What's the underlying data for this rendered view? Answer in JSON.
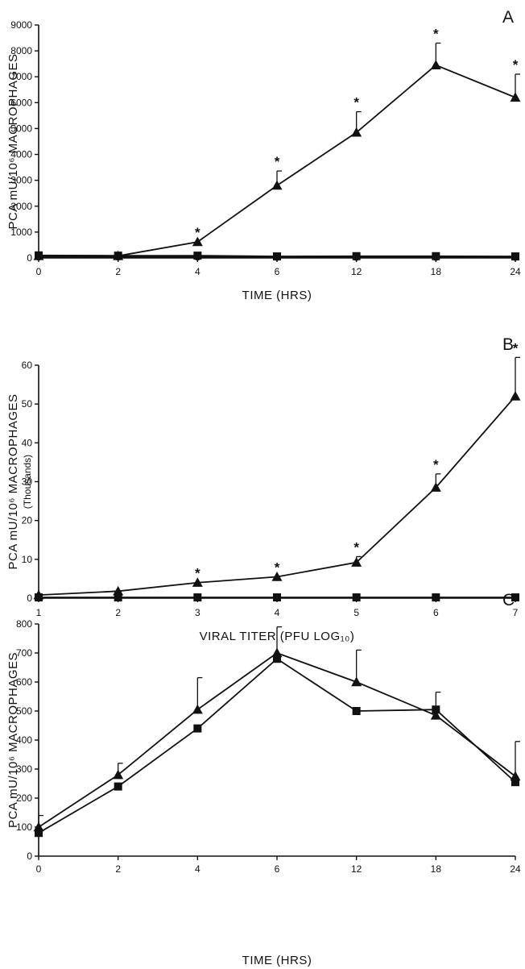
{
  "chart_data": [
    {
      "type": "line",
      "panel_label": "A",
      "xlabel": "TIME (HRS)",
      "ylabel": "PCA mU/10⁶ MACROPHAGES",
      "ylabel_sub": "",
      "xscale": "categorical",
      "x": [
        "0",
        "2",
        "4",
        "6",
        "12",
        "18",
        "24"
      ],
      "ylim": [
        0,
        9000
      ],
      "yticks": [
        0,
        1000,
        2000,
        3000,
        4000,
        5000,
        6000,
        7000,
        8000,
        9000
      ],
      "significance_marker": "*",
      "series": [
        {
          "marker": "triangle",
          "values": [
            80,
            80,
            620,
            2800,
            4850,
            7450,
            6200
          ],
          "errors": [
            0,
            0,
            0,
            560,
            800,
            850,
            900
          ],
          "significant": [
            false,
            false,
            true,
            true,
            true,
            true,
            true
          ]
        },
        {
          "marker": "square",
          "values": [
            100,
            90,
            90,
            60,
            70,
            70,
            60
          ],
          "errors": [
            0,
            0,
            0,
            0,
            0,
            0,
            0
          ],
          "significant": [
            false,
            false,
            false,
            false,
            false,
            false,
            false
          ]
        },
        {
          "marker": "circle",
          "values": [
            40,
            40,
            40,
            30,
            30,
            30,
            30
          ],
          "errors": [
            0,
            0,
            0,
            0,
            0,
            0,
            0
          ],
          "significant": [
            false,
            false,
            false,
            false,
            false,
            false,
            false
          ]
        }
      ]
    },
    {
      "type": "line",
      "panel_label": "B",
      "xlabel": "VIRAL TITER (PFU LOG₁₀)",
      "ylabel": "PCA mU/10⁶ MACROPHAGES",
      "ylabel_sub": "(Thousands)",
      "xscale": "categorical",
      "x": [
        "1",
        "2",
        "3",
        "4",
        "5",
        "6",
        "7"
      ],
      "ylim": [
        0,
        60
      ],
      "yticks": [
        0,
        10,
        20,
        30,
        40,
        50,
        60
      ],
      "significance_marker": "*",
      "series": [
        {
          "marker": "triangle",
          "values": [
            0.8,
            1.8,
            4.0,
            5.5,
            9.2,
            28.5,
            52.0
          ],
          "errors": [
            0,
            0,
            0,
            0,
            1.5,
            3.5,
            10.0
          ],
          "significant": [
            false,
            false,
            true,
            true,
            true,
            true,
            true
          ]
        },
        {
          "marker": "square",
          "values": [
            0.2,
            0.2,
            0.2,
            0.2,
            0.2,
            0.2,
            0.2
          ],
          "errors": [
            0,
            0,
            0,
            0,
            0,
            0,
            0
          ],
          "significant": [
            false,
            false,
            false,
            false,
            false,
            false,
            false
          ]
        }
      ]
    },
    {
      "type": "line",
      "panel_label": "C",
      "xlabel": "TIME (HRS)",
      "ylabel": "PCA mU/10⁶ MACROPHAGES",
      "ylabel_sub": "",
      "xscale": "categorical",
      "x": [
        "0",
        "2",
        "4",
        "6",
        "12",
        "18",
        "24"
      ],
      "ylim": [
        0,
        800
      ],
      "yticks": [
        0,
        100,
        200,
        300,
        400,
        500,
        600,
        700,
        800
      ],
      "significance_marker": "*",
      "series": [
        {
          "marker": "triangle",
          "values": [
            100,
            280,
            505,
            700,
            600,
            485,
            275
          ],
          "errors": [
            40,
            40,
            110,
            90,
            110,
            80,
            120
          ],
          "significant": [
            false,
            false,
            false,
            false,
            false,
            false,
            false
          ]
        },
        {
          "marker": "square",
          "values": [
            80,
            240,
            440,
            680,
            500,
            505,
            255
          ],
          "errors": [
            0,
            0,
            0,
            0,
            0,
            0,
            0
          ],
          "significant": [
            false,
            false,
            false,
            false,
            false,
            false,
            false
          ]
        }
      ]
    }
  ]
}
